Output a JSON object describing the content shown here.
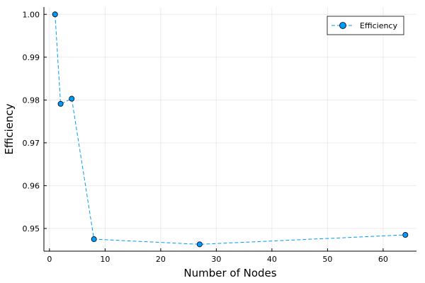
{
  "chart_data": {
    "type": "line",
    "title": "",
    "xlabel": "Number of Nodes",
    "ylabel": "Efficiency",
    "xlim": [
      -1,
      66
    ],
    "ylim": [
      0.9447,
      1.0017
    ],
    "xticks": [
      0,
      10,
      20,
      30,
      40,
      50,
      60
    ],
    "yticks": [
      0.95,
      0.96,
      0.97,
      0.98,
      0.99,
      1.0
    ],
    "ytick_labels": [
      "0.95",
      "0.96",
      "0.97",
      "0.98",
      "0.99",
      "1.00"
    ],
    "grid": true,
    "legend_position": "top-right",
    "series": [
      {
        "name": "Efficiency",
        "color": "#009af9",
        "line_style": "dashed",
        "marker": "circle",
        "x": [
          1,
          2,
          4,
          8,
          27,
          64
        ],
        "y": [
          1.0,
          0.9791,
          0.9803,
          0.9475,
          0.9463,
          0.9485
        ]
      }
    ]
  }
}
